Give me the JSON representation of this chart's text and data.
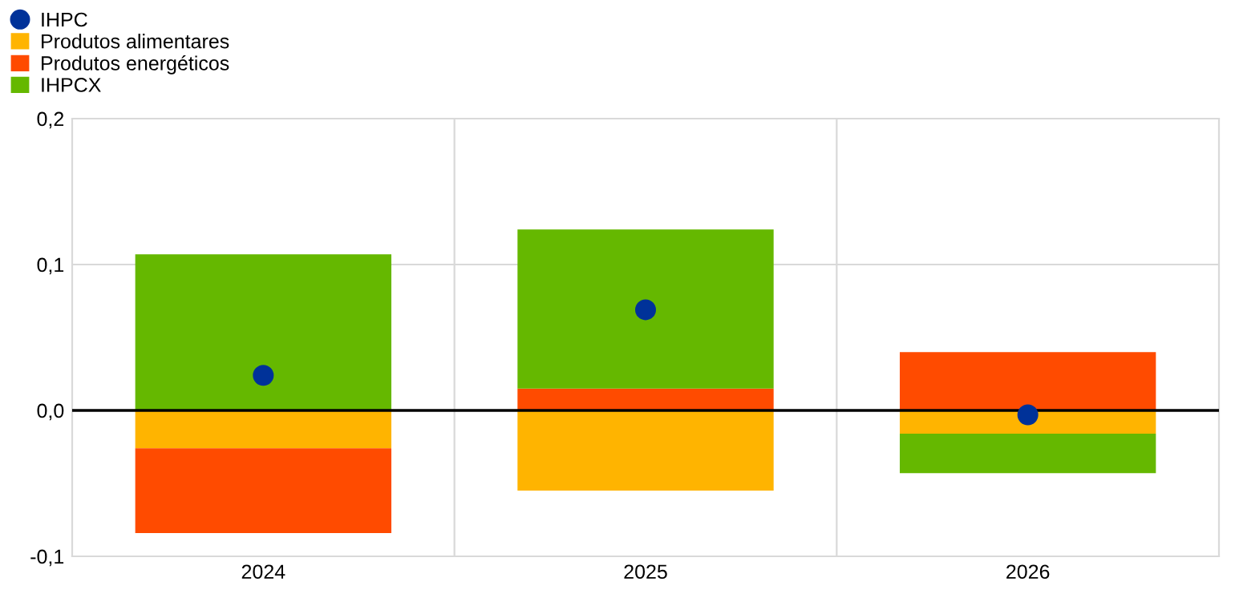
{
  "chart_data": {
    "type": "bar",
    "stacked": true,
    "categories": [
      "2024",
      "2025",
      "2026"
    ],
    "series": [
      {
        "name": "IHPC",
        "type": "scatter",
        "color": "#003299",
        "values": [
          0.024,
          0.069,
          -0.003
        ]
      },
      {
        "name": "Produtos alimentares",
        "color": "#ffb400",
        "values": [
          -0.026,
          -0.055,
          -0.016
        ]
      },
      {
        "name": "Produtos energéticos",
        "color": "#ff4b00",
        "values": [
          -0.058,
          0.015,
          0.04
        ]
      },
      {
        "name": "IHPCX",
        "color": "#65b800",
        "values": [
          0.107,
          0.109,
          -0.027
        ]
      }
    ],
    "ylim": [
      -0.1,
      0.2
    ],
    "yticks": [
      {
        "value": -0.1,
        "label": "-0,1"
      },
      {
        "value": 0.0,
        "label": "0,0"
      },
      {
        "value": 0.1,
        "label": "0,1"
      },
      {
        "value": 0.2,
        "label": "0,2"
      }
    ],
    "ref_lines": [
      {
        "axis": "y",
        "value": 0,
        "color": "#000000"
      }
    ],
    "grid": true,
    "legend": "top left",
    "marker": "circle"
  }
}
